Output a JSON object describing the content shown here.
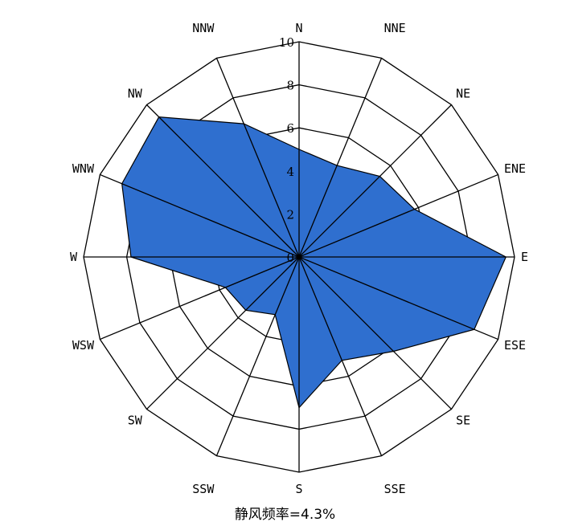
{
  "chart_data": {
    "type": "radar",
    "chart_kind": "wind-rose",
    "directions": [
      "N",
      "NNE",
      "NE",
      "ENE",
      "E",
      "ESE",
      "SE",
      "SSE",
      "S",
      "SSW",
      "SW",
      "WSW",
      "W",
      "WNW",
      "NW",
      "NNW"
    ],
    "values": [
      5.0,
      4.6,
      5.3,
      5.8,
      9.6,
      8.8,
      6.2,
      5.2,
      7.0,
      2.9,
      3.5,
      3.7,
      7.8,
      8.9,
      9.2,
      6.7
    ],
    "r_ticks": [
      "0",
      "2",
      "4",
      "6",
      "8",
      "10"
    ],
    "rlim": [
      0,
      10
    ],
    "rings": 5,
    "fill_color": "#2f6fcf",
    "stroke_color": "#000000",
    "grid_color": "#000000",
    "grid": true,
    "calm_label": "静风频率=4.3%"
  }
}
